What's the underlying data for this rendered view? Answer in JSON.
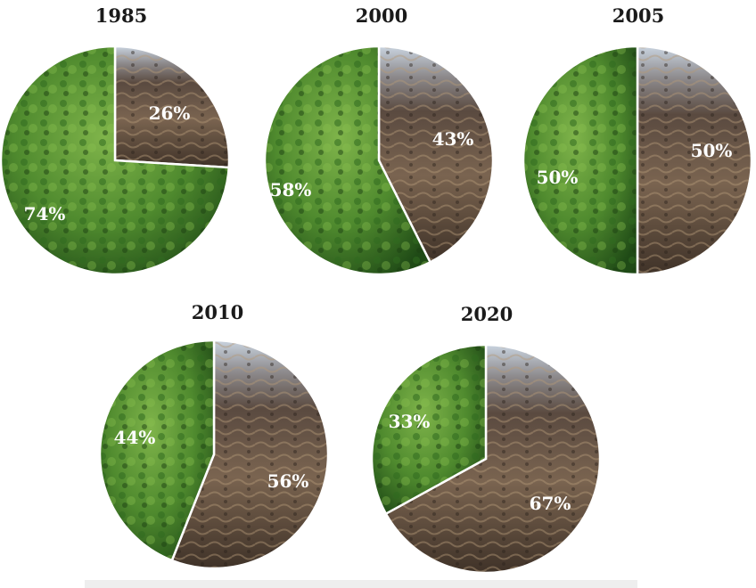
{
  "chart_data": [
    {
      "type": "pie",
      "title": "1985",
      "slices": [
        {
          "label": "26%",
          "value": 26,
          "kind": "deforested"
        },
        {
          "label": "74%",
          "value": 74,
          "kind": "forest"
        }
      ]
    },
    {
      "type": "pie",
      "title": "2000",
      "slices": [
        {
          "label": "43%",
          "value": 43,
          "kind": "deforested"
        },
        {
          "label": "58%",
          "value": 58,
          "kind": "forest"
        }
      ]
    },
    {
      "type": "pie",
      "title": "2005",
      "slices": [
        {
          "label": "50%",
          "value": 50,
          "kind": "deforested"
        },
        {
          "label": "50%",
          "value": 50,
          "kind": "forest"
        }
      ]
    },
    {
      "type": "pie",
      "title": "2010",
      "slices": [
        {
          "label": "56%",
          "value": 56,
          "kind": "deforested"
        },
        {
          "label": "44%",
          "value": 44,
          "kind": "forest"
        }
      ]
    },
    {
      "type": "pie",
      "title": "2020",
      "slices": [
        {
          "label": "67%",
          "value": 67,
          "kind": "deforested"
        },
        {
          "label": "33%",
          "value": 33,
          "kind": "forest"
        }
      ]
    }
  ],
  "colors": {
    "forest_light": "#5f9a3a",
    "forest_dark": "#1f4a16",
    "cleared_light": "#8a7560",
    "cleared_dark": "#3f3228",
    "sky": "#c9d3df",
    "divider": "#ffffff",
    "label": "#ffffff",
    "title": "#1a1a1a"
  }
}
